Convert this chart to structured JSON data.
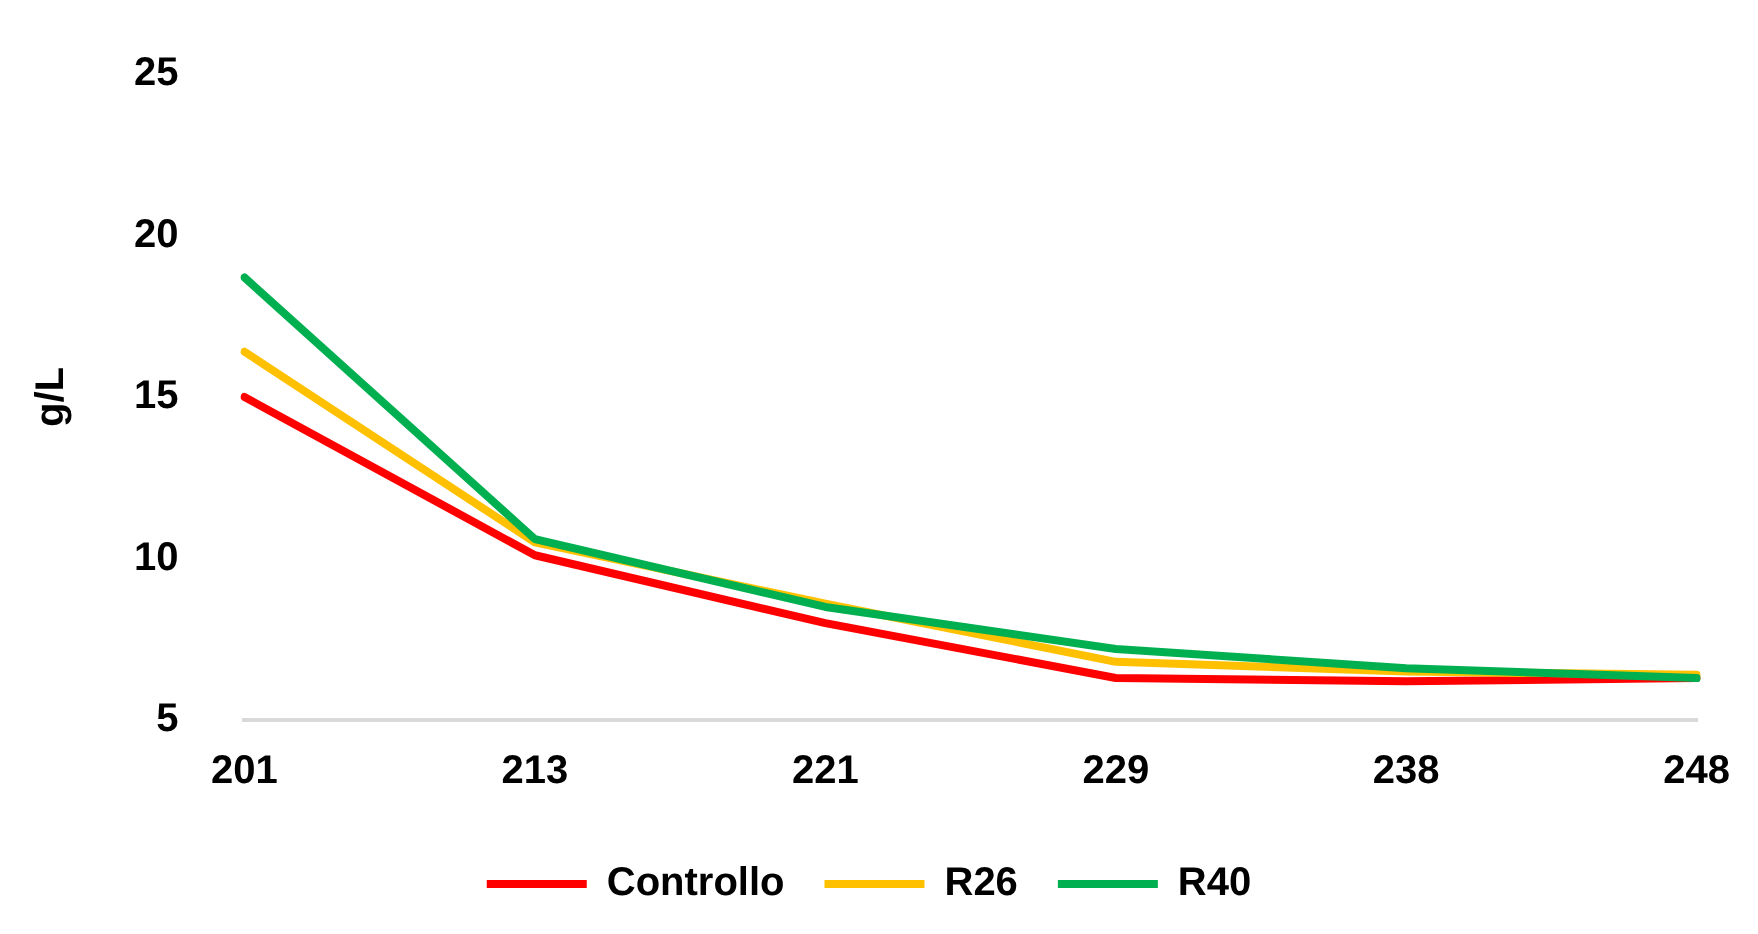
{
  "chart_data": {
    "type": "line",
    "ylabel": "g/L",
    "categories": [
      "201",
      "213",
      "221",
      "229",
      "238",
      "248"
    ],
    "series": [
      {
        "name": "Controllo",
        "color": "#ff0000",
        "values": [
          15.0,
          10.1,
          8.0,
          6.3,
          6.2,
          6.3
        ]
      },
      {
        "name": "R26",
        "color": "#ffc000",
        "values": [
          16.4,
          10.5,
          8.6,
          6.8,
          6.5,
          6.4
        ]
      },
      {
        "name": "R40",
        "color": "#00b050",
        "values": [
          18.7,
          10.6,
          8.5,
          7.2,
          6.6,
          6.3
        ]
      }
    ],
    "ylim": [
      5,
      25
    ],
    "yticks": [
      5,
      10,
      15,
      20,
      25
    ],
    "grid": false,
    "legend": "bottom",
    "marker": "none",
    "line_style": "solid"
  }
}
